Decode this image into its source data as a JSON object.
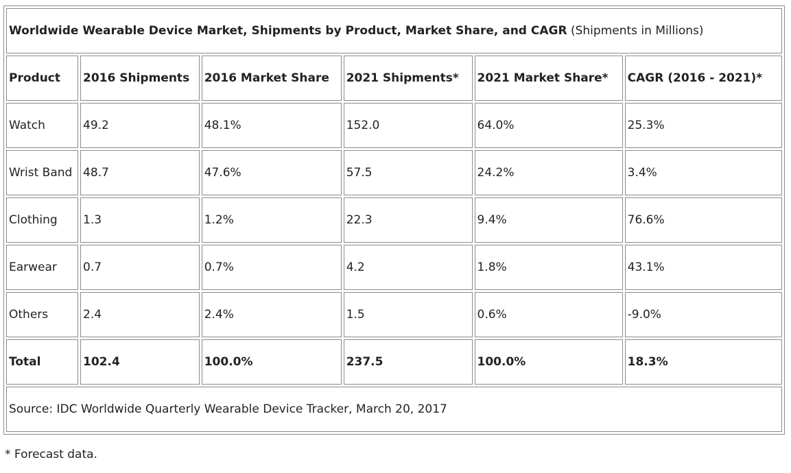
{
  "chart_data": {
    "type": "table",
    "title": "Worldwide Wearable Device Market, Shipments by Product, Market Share, and CAGR",
    "subtitle": "(Shipments in Millions)",
    "columns": [
      "Product",
      "2016 Shipments",
      "2016 Market Share",
      "2021 Shipments*",
      "2021 Market Share*",
      "CAGR (2016 - 2021)*"
    ],
    "rows": [
      [
        "Watch",
        "49.2",
        "48.1%",
        "152.0",
        "64.0%",
        "25.3%"
      ],
      [
        "Wrist Band",
        "48.7",
        "47.6%",
        "57.5",
        "24.2%",
        "3.4%"
      ],
      [
        "Clothing",
        "1.3",
        "1.2%",
        "22.3",
        "9.4%",
        "76.6%"
      ],
      [
        "Earwear",
        "0.7",
        "0.7%",
        "4.2",
        "1.8%",
        "43.1%"
      ],
      [
        "Others",
        "2.4",
        "2.4%",
        "1.5",
        "0.6%",
        "-9.0%"
      ]
    ],
    "total": [
      "Total",
      "102.4",
      "100.0%",
      "237.5",
      "100.0%",
      "18.3%"
    ],
    "source": "Source: IDC Worldwide Quarterly Wearable Device Tracker, March 20, 2017"
  },
  "footnote": "* Forecast data."
}
